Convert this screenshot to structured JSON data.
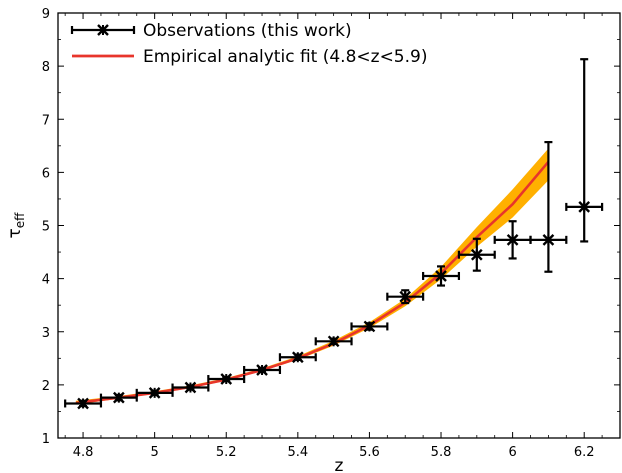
{
  "chart_data": {
    "type": "scatter",
    "xlabel": "z",
    "ylabel": "τ",
    "ylabel_sub": "eff",
    "xlim": [
      4.73,
      6.3
    ],
    "ylim": [
      1,
      9
    ],
    "x_ticks": [
      4.8,
      5,
      5.2,
      5.4,
      5.6,
      5.8,
      6,
      6.2
    ],
    "y_ticks": [
      1,
      2,
      3,
      4,
      5,
      6,
      7,
      8,
      9
    ],
    "grid": false,
    "legend_position": "top-left",
    "legend": [
      {
        "label": "Observations (this work)",
        "marker": "x-errorbar",
        "color": "#000000"
      },
      {
        "label": "Empirical analytic fit (4.8<z<5.9)",
        "marker": "line",
        "color": "#e8352b"
      }
    ],
    "series": [
      {
        "name": "Observations (this work)",
        "color": "#000000",
        "points": [
          {
            "x": 4.8,
            "y": 1.65,
            "xerr": 0.05,
            "yerr": 0.05
          },
          {
            "x": 4.9,
            "y": 1.76,
            "xerr": 0.05,
            "yerr": 0.05
          },
          {
            "x": 5.0,
            "y": 1.85,
            "xerr": 0.05,
            "yerr": 0.04
          },
          {
            "x": 5.1,
            "y": 1.95,
            "xerr": 0.05,
            "yerr": 0.04
          },
          {
            "x": 5.2,
            "y": 2.11,
            "xerr": 0.05,
            "yerr": 0.04
          },
          {
            "x": 5.3,
            "y": 2.28,
            "xerr": 0.05,
            "yerr": 0.04
          },
          {
            "x": 5.4,
            "y": 2.52,
            "xerr": 0.05,
            "yerr": 0.05
          },
          {
            "x": 5.5,
            "y": 2.82,
            "xerr": 0.05,
            "yerr": 0.05
          },
          {
            "x": 5.6,
            "y": 3.1,
            "xerr": 0.05,
            "yerr": 0.06
          },
          {
            "x": 5.7,
            "y": 3.66,
            "xerr": 0.05,
            "yerr": 0.12
          },
          {
            "x": 5.8,
            "y": 4.05,
            "xerr": 0.05,
            "yerr": 0.18
          },
          {
            "x": 5.9,
            "y": 4.45,
            "xerr": 0.05,
            "yerr": 0.3
          },
          {
            "x": 6.0,
            "y": 4.73,
            "xerr": 0.05,
            "yerr": 0.35
          },
          {
            "x": 6.1,
            "y": 4.73,
            "xerr": 0.05,
            "yerr_low": 0.6,
            "yerr_high": 1.84
          },
          {
            "x": 6.2,
            "y": 5.35,
            "xerr": 0.05,
            "yerr_low": 0.65,
            "yerr_high": 2.78
          }
        ]
      },
      {
        "name": "Empirical analytic fit (4.8<z<5.9)",
        "type": "line",
        "color": "#e8352b",
        "band_color": "#ffb000",
        "x": [
          4.78,
          4.9,
          5.0,
          5.1,
          5.2,
          5.3,
          5.4,
          5.5,
          5.6,
          5.7,
          5.8,
          5.9,
          6.0,
          6.1
        ],
        "y": [
          1.66,
          1.76,
          1.85,
          1.96,
          2.1,
          2.28,
          2.5,
          2.78,
          3.12,
          3.55,
          4.1,
          4.78,
          5.4,
          6.2
        ],
        "band_low": [
          1.63,
          1.74,
          1.83,
          1.94,
          2.08,
          2.26,
          2.47,
          2.74,
          3.07,
          3.48,
          3.99,
          4.6,
          5.15,
          5.85
        ],
        "band_high": [
          1.7,
          1.79,
          1.88,
          1.99,
          2.13,
          2.31,
          2.54,
          2.83,
          3.18,
          3.62,
          4.22,
          4.97,
          5.68,
          6.45
        ]
      }
    ]
  }
}
